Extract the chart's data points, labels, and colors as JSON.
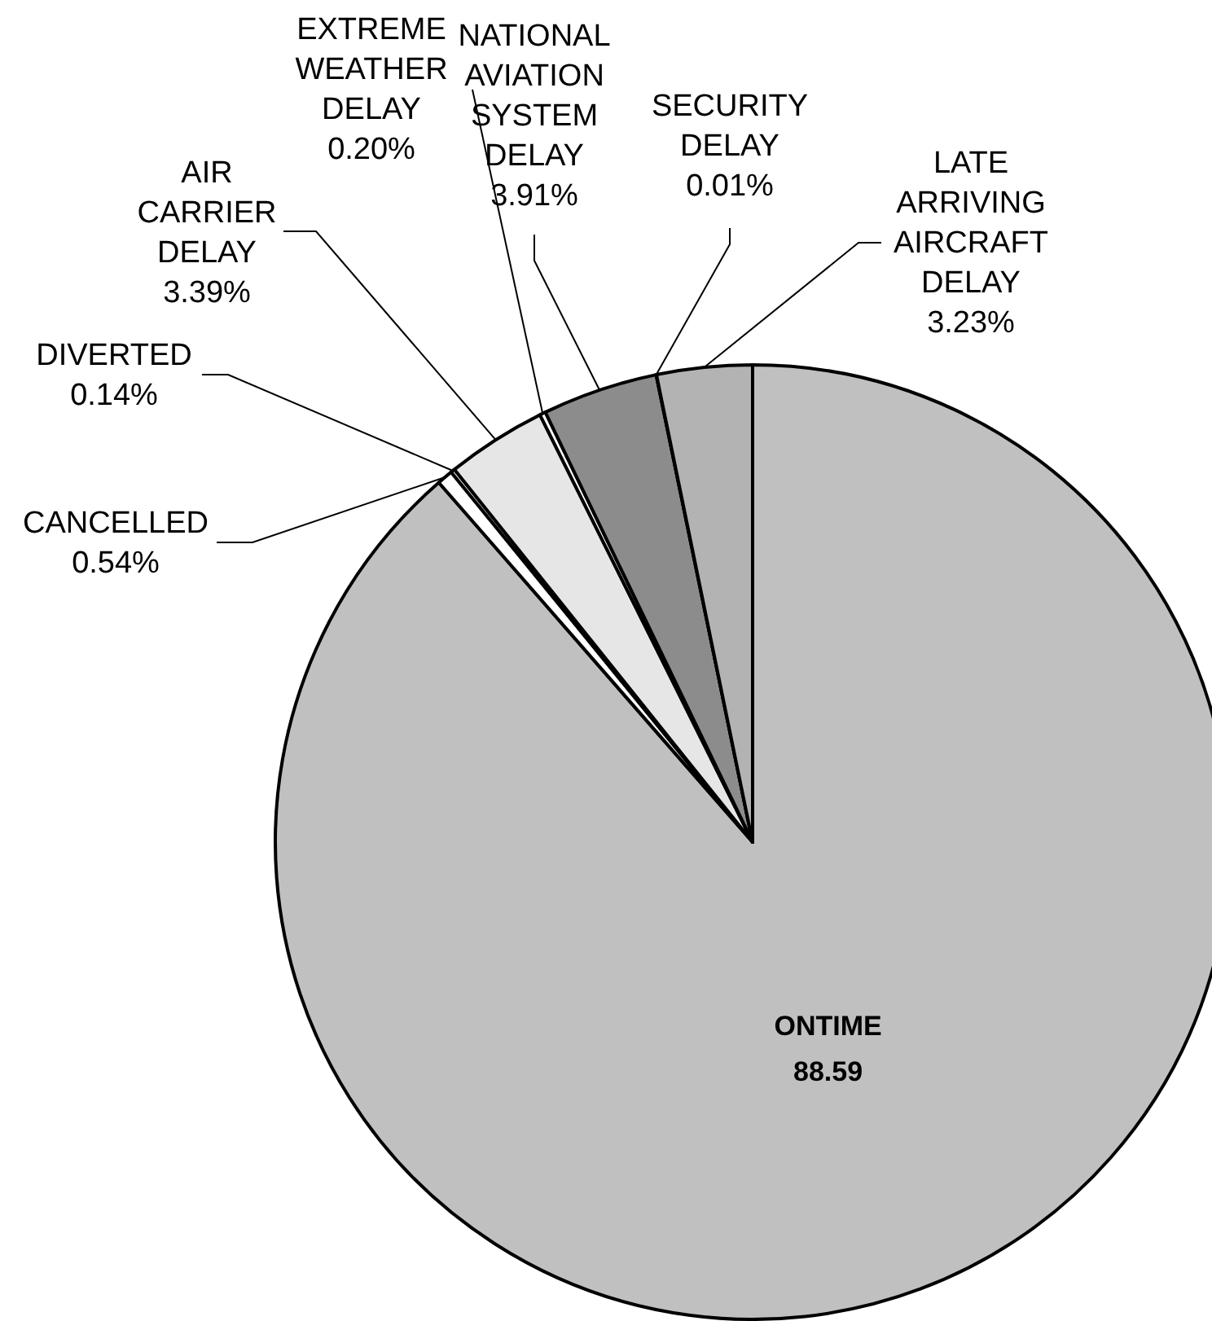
{
  "chart_data": {
    "type": "pie",
    "categories": [
      "ONTIME",
      "CANCELLED",
      "DIVERTED",
      "AIR CARRIER DELAY",
      "EXTREME WEATHER DELAY",
      "NATIONAL AVIATION SYSTEM DELAY",
      "SECURITY DELAY",
      "LATE ARRIVING AIRCRAFT DELAY"
    ],
    "values": [
      88.59,
      0.54,
      0.14,
      3.39,
      0.2,
      3.91,
      0.01,
      3.23
    ],
    "value_labels": [
      "88.59",
      "0.54%",
      "0.14%",
      "3.39%",
      "0.20%",
      "3.91%",
      "0.01%",
      "3.23%"
    ],
    "colors": [
      "#c0c0c0",
      "#ffffff",
      "#ffffff",
      "#e6e6e6",
      "#ffffff",
      "#8c8c8c",
      "#ffffff",
      "#b3b3b3"
    ]
  }
}
